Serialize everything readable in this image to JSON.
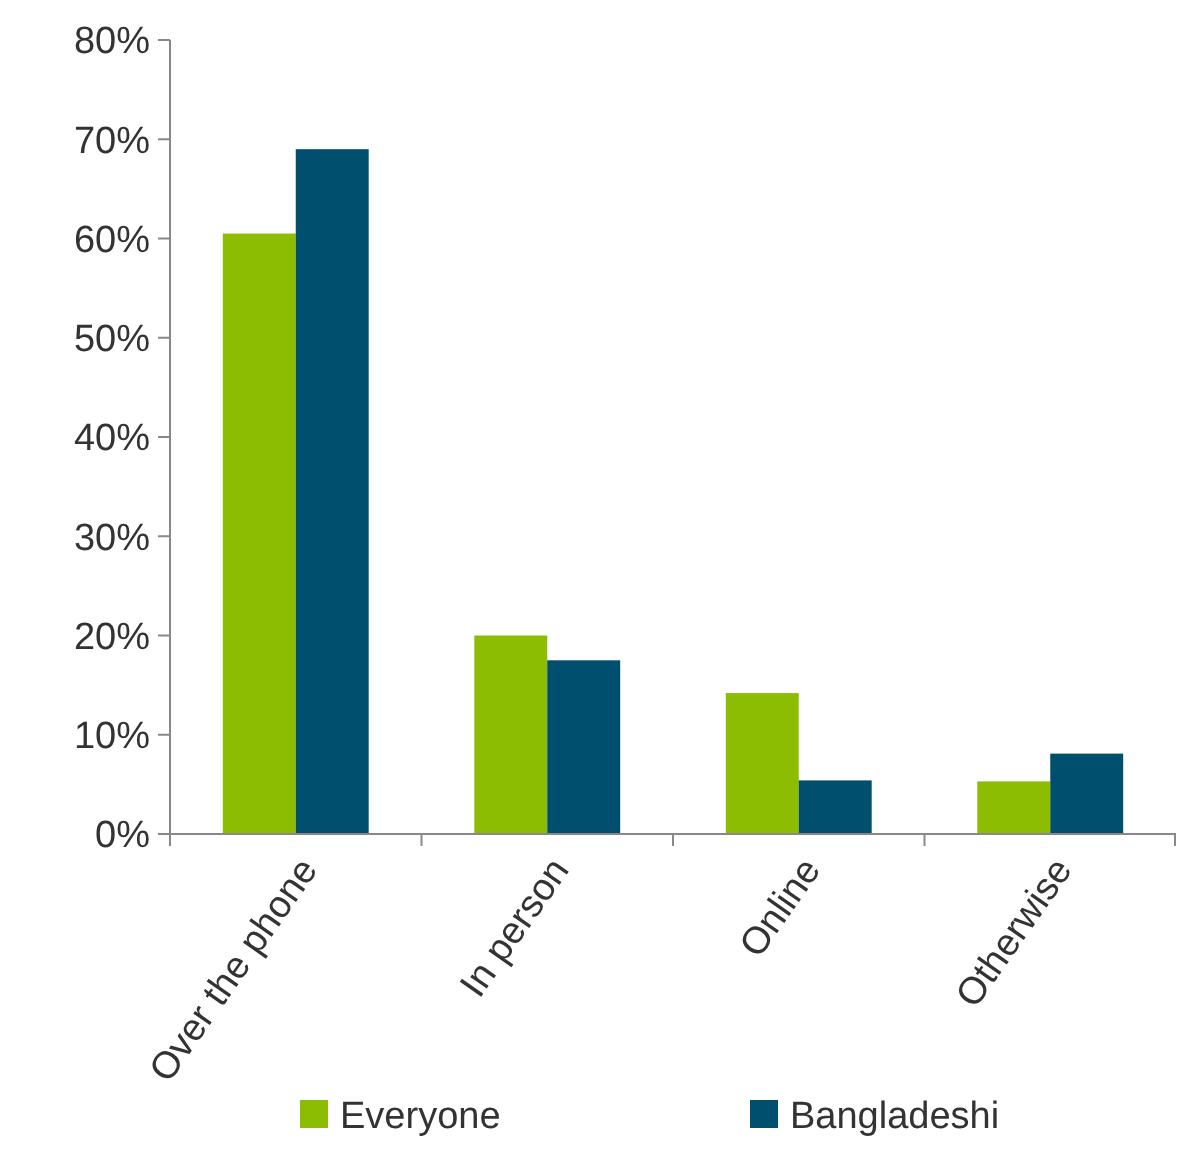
{
  "chart_data": {
    "type": "bar",
    "categories": [
      "Over the phone",
      "In person",
      "Online",
      "Otherwise"
    ],
    "series": [
      {
        "name": "Everyone",
        "color": "#8cbd00",
        "values": [
          60.5,
          20,
          14.2,
          5.3
        ]
      },
      {
        "name": "Bangladeshi",
        "color": "#004f6e",
        "values": [
          69,
          17.5,
          5.4,
          8.1
        ]
      }
    ],
    "ylim": [
      0,
      80
    ],
    "yticks": [
      {
        "value": 0,
        "label": "0%"
      },
      {
        "value": 10,
        "label": "10%"
      },
      {
        "value": 20,
        "label": "20%"
      },
      {
        "value": 30,
        "label": "30%"
      },
      {
        "value": 40,
        "label": "40%"
      },
      {
        "value": 50,
        "label": "50%"
      },
      {
        "value": 60,
        "label": "60%"
      },
      {
        "value": 70,
        "label": "70%"
      },
      {
        "value": 80,
        "label": "80%"
      }
    ],
    "grid": false,
    "legend": "bottom"
  }
}
